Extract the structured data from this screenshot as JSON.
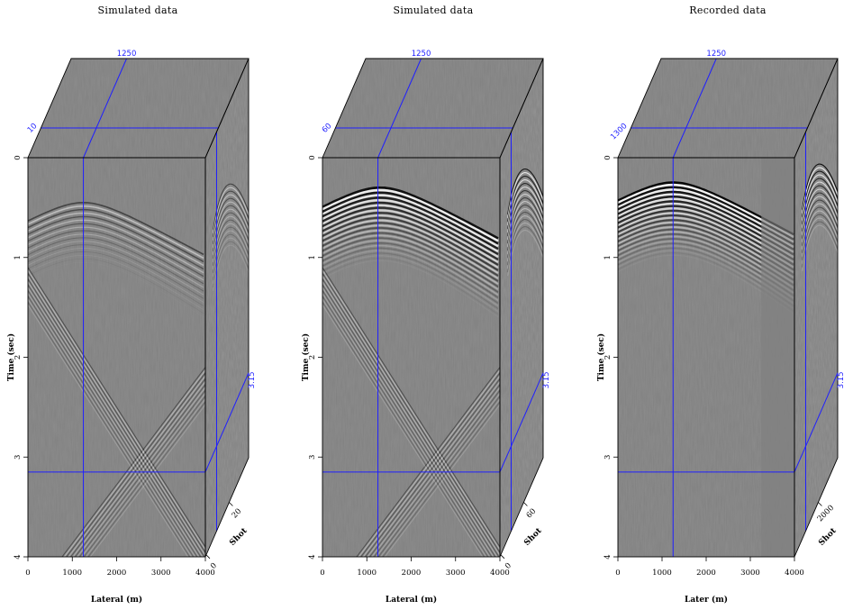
{
  "chart_data": [
    {
      "type": "seismic-cube",
      "title": "Simulated data",
      "x": {
        "label": "Lateral (m)",
        "range": [
          0,
          4000
        ],
        "ticks": [
          "0",
          "1000",
          "2000",
          "3000",
          "4000"
        ]
      },
      "y": {
        "label": "Time (sec)",
        "range": [
          0,
          4
        ],
        "ticks": [
          "0",
          "1",
          "2",
          "3",
          "4"
        ]
      },
      "z": {
        "label": "Shot",
        "ticks": [
          "0",
          "20"
        ]
      },
      "slice": {
        "lateral": "1250",
        "shot": "10",
        "time": "3.15"
      },
      "event": {
        "apex_x": 1250,
        "apex_t": 0.45,
        "amplitude": 0.35,
        "diagonals": true
      }
    },
    {
      "type": "seismic-cube",
      "title": "Simulated data",
      "x": {
        "label": "Lateral (m)",
        "range": [
          0,
          4000
        ],
        "ticks": [
          "0",
          "1000",
          "2000",
          "3000",
          "4000"
        ]
      },
      "y": {
        "label": "Time (sec)",
        "range": [
          0,
          4
        ],
        "ticks": [
          "0",
          "1",
          "2",
          "3",
          "4"
        ]
      },
      "z": {
        "label": "Shot",
        "ticks": [
          "0",
          "60"
        ]
      },
      "slice": {
        "lateral": "1250",
        "shot": "60",
        "time": "3.15"
      },
      "event": {
        "apex_x": 1300,
        "apex_t": 0.3,
        "amplitude": 0.9,
        "diagonals": true
      }
    },
    {
      "type": "seismic-cube",
      "title": "Recorded data",
      "x": {
        "label": "Later (m)",
        "range": [
          0,
          4000
        ],
        "ticks": [
          "0",
          "1000",
          "2000",
          "3000",
          "4000"
        ]
      },
      "y": {
        "label": "Time (sec)",
        "range": [
          0,
          4
        ],
        "ticks": [
          "0",
          "1",
          "2",
          "3",
          "4"
        ]
      },
      "z": {
        "label": "Shot",
        "ticks": [
          "2000"
        ]
      },
      "slice": {
        "lateral": "1250",
        "shot": "1300",
        "time": "3.15"
      },
      "event": {
        "apex_x": 1250,
        "apex_t": 0.25,
        "amplitude": 1.0,
        "diagonals": false
      }
    }
  ],
  "colors": {
    "background": "#808080",
    "frame": "#000000",
    "slice": "#1f1fff"
  }
}
